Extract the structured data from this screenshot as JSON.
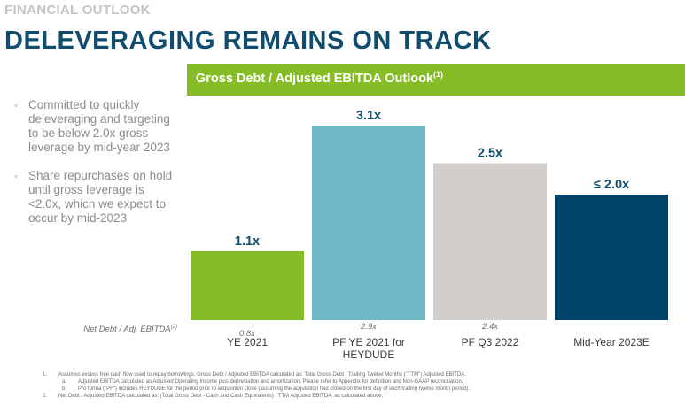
{
  "section_label": "FINANCIAL OUTLOOK",
  "headline": "DELEVERAGING REMAINS ON TRACK",
  "bullets": [
    "Committed to quickly deleveraging and targeting to be below 2.0x gross leverage by mid-year 2023",
    "Share repurchases on hold until gross leverage is <2.0x, which we expect to occur by mid-2023"
  ],
  "net_debt_label": "Net Debt / Adj. EBITDA",
  "net_debt_note_ref": "(2)",
  "colors": {
    "green": "#86bc25",
    "teal": "#70b7c5",
    "gray": "#d2cecb",
    "navy": "#00436a",
    "title": "#0f4c6e"
  },
  "chart_data": {
    "type": "bar",
    "title": "Gross Debt / Adjusted EBITDA Outlook",
    "title_note_ref": "(1)",
    "categories": [
      "YE 2021",
      "PF YE 2021 for HEYDUDE",
      "PF Q3 2022",
      "Mid-Year 2023E"
    ],
    "category_lines": [
      [
        "YE 2021"
      ],
      [
        "PF YE 2021 for",
        "HEYDUDE"
      ],
      [
        "PF Q3 2022"
      ],
      [
        "Mid-Year 2023E"
      ]
    ],
    "series": [
      {
        "name": "Gross Debt / Adjusted EBITDA",
        "values": [
          1.1,
          3.1,
          2.5,
          2.0
        ],
        "labels": [
          "1.1x",
          "3.1x",
          "2.5x",
          "≤ 2.0x"
        ]
      },
      {
        "name": "Net Debt / Adj. EBITDA",
        "values": [
          0.8,
          2.9,
          2.4,
          null
        ],
        "labels": [
          "0.8x",
          "2.9x",
          "2.4x",
          ""
        ]
      }
    ],
    "bar_colors": [
      "#86bc25",
      "#70b7c5",
      "#d2cecb",
      "#00436a"
    ],
    "ylim": [
      0,
      3.1
    ],
    "xlabel": "",
    "ylabel": "",
    "grid": false,
    "legend": "none"
  },
  "footnotes": [
    {
      "num": "1.",
      "text": "Assumes excess free cash flow used to repay borrowings. Gross Debt / Adjusted EBITDA calculated as: Total Gross Debt / Trailing Twelve Months (\"TTM\") Adjusted EBITDA."
    },
    {
      "num": "a.",
      "text": "Adjusted EBITDA calculated as Adjusted Operating Income plus depreciation and amortization. Please refer to Appendix for definition and Non-GAAP reconciliation.",
      "sub": true
    },
    {
      "num": "b.",
      "text": "Pro forma (\"PF\") includes HEYDUDE for the period prior to acquisition close (assuming the acquisition had closed on the first day of such trailing twelve month period).",
      "sub": true
    },
    {
      "num": "2.",
      "text": "Net Debt / Adjusted EBITDA calculated as: (Total Gross Debt - Cash and Cash Equivalents) / TTM Adjusted EBITDA, as calculated above."
    }
  ]
}
